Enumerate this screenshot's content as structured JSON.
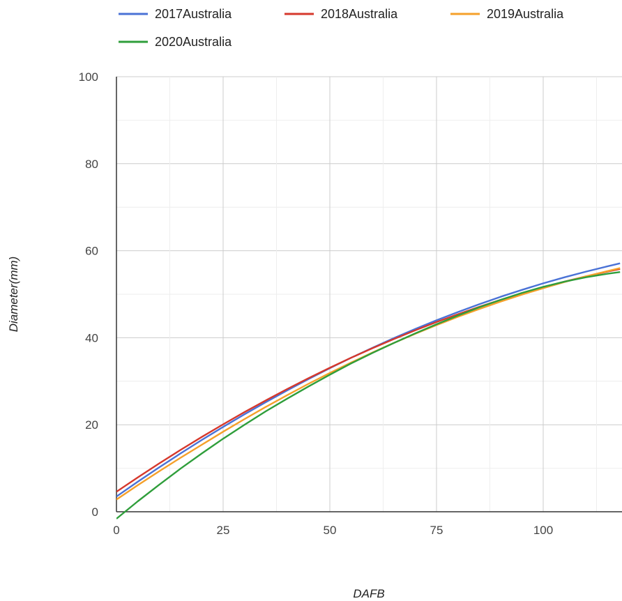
{
  "chart_data": {
    "type": "line",
    "title": "",
    "xlabel": "DAFB",
    "ylabel": "Diameter(mm)",
    "xlim": [
      0,
      118
    ],
    "ylim": [
      0,
      100
    ],
    "x_ticks": [
      0,
      25,
      50,
      75,
      100
    ],
    "y_ticks": [
      0,
      20,
      40,
      60,
      80,
      100
    ],
    "grid": true,
    "legend_position": "top",
    "x": [
      0,
      5,
      10,
      15,
      20,
      25,
      30,
      35,
      40,
      45,
      50,
      55,
      60,
      65,
      70,
      75,
      80,
      85,
      90,
      95,
      100,
      105,
      110,
      115,
      118
    ],
    "series": [
      {
        "name": "2017Australia",
        "color": "#4a72d6",
        "values": [
          3.5,
          6.9,
          10.2,
          13.4,
          16.5,
          19.5,
          22.4,
          25.2,
          27.9,
          30.5,
          33.0,
          35.4,
          37.7,
          39.9,
          42.0,
          44.0,
          45.9,
          47.7,
          49.4,
          51.0,
          52.5,
          53.9,
          55.2,
          56.4,
          57.1
        ]
      },
      {
        "name": "2018Australia",
        "color": "#d6382c",
        "values": [
          4.6,
          7.9,
          11.1,
          14.2,
          17.2,
          20.1,
          22.9,
          25.6,
          28.2,
          30.7,
          33.1,
          35.4,
          37.6,
          39.7,
          41.7,
          43.6,
          45.4,
          47.1,
          48.7,
          50.2,
          51.6,
          52.9,
          54.1,
          55.2,
          55.8
        ]
      },
      {
        "name": "2019Australia",
        "color": "#f5a02a",
        "values": [
          2.8,
          6.1,
          9.3,
          12.4,
          15.4,
          18.4,
          21.3,
          24.1,
          26.8,
          29.4,
          31.9,
          34.3,
          36.6,
          38.8,
          40.9,
          42.9,
          44.8,
          46.6,
          48.3,
          49.9,
          51.4,
          52.8,
          54.1,
          55.3,
          56.0
        ]
      },
      {
        "name": "2020Australia",
        "color": "#2f9e3b",
        "values": [
          -1.6,
          2.4,
          6.2,
          9.9,
          13.4,
          16.8,
          20.0,
          23.1,
          26.0,
          28.8,
          31.5,
          34.1,
          36.5,
          38.8,
          41.0,
          43.1,
          45.1,
          47.0,
          48.7,
          50.3,
          51.7,
          52.9,
          53.9,
          54.7,
          55.1
        ]
      }
    ]
  }
}
